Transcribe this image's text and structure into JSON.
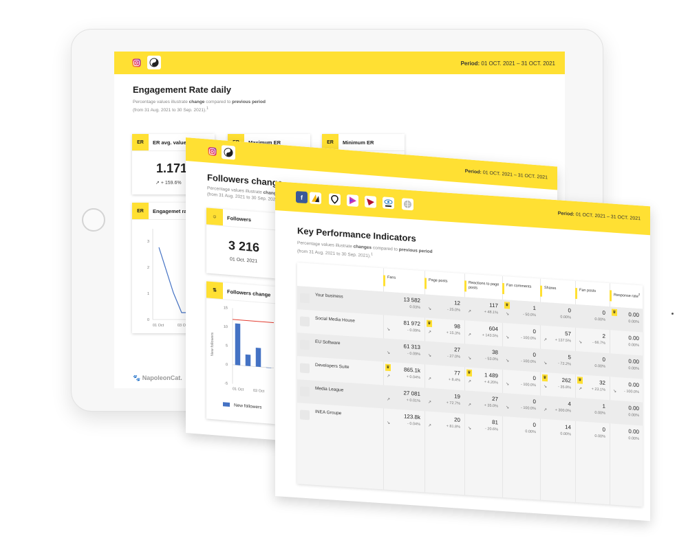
{
  "brand": {
    "name": "NapoleonCat."
  },
  "colors": {
    "accent": "#ffe033",
    "bar": "#4472c4",
    "line": "#e33b2e"
  },
  "engagement_sheet": {
    "period_label": "Period:",
    "period_value": "01 OCT. 2021 – 31 OCT. 2021",
    "title": "Engagement Rate daily",
    "subtitle_pre": "Percentage values illustrate ",
    "subtitle_b1": "change",
    "subtitle_mid": " compared to ",
    "subtitle_b2": "previous period",
    "subtitle_line2": "(from 31 Aug. 2021 to 30 Sep. 2021).",
    "subtitle_note": "1",
    "cards": [
      {
        "label": "ER avg. value",
        "badge": "ER",
        "value": "1.171",
        "change": "+ 159.6%"
      },
      {
        "label": "Maximum ER",
        "badge": "ER"
      },
      {
        "label": "Minimum ER",
        "badge": "ER"
      }
    ],
    "chart_card_label": "Engagemet rate",
    "chart_card_badge": "ER",
    "chart_y_ticks": [
      "3",
      "2",
      "1",
      "0"
    ],
    "chart_x_ticks": [
      "01 Oct",
      "03 Oct"
    ]
  },
  "followers_sheet": {
    "period_label": "Period:",
    "period_value": "01 OCT. 2021 – 31 OCT. 2021",
    "title": "Followers change",
    "subtitle_pre": "Percentage values illustrate ",
    "subtitle_b1": "chang",
    "subtitle_line2": "(from 31 Aug. 2021 to 30 Sep. 2021).",
    "followers_card": {
      "label": "Followers",
      "value": "3 216",
      "date": "01 Oct. 2021"
    },
    "change_card": {
      "label": "Followers change"
    }
  },
  "chart_data": {
    "type": "bar",
    "title": "",
    "xlabel": "",
    "ylabel": "New followers",
    "ylim": [
      -5,
      15
    ],
    "y_ticks": [
      "15",
      "10",
      "5",
      "0",
      "-5"
    ],
    "x_tick_labels": [
      "01 Oct",
      "03 Oct"
    ],
    "categories": [
      "01 Oct",
      "02 Oct",
      "03 Oct",
      "04 Oct"
    ],
    "series": [
      {
        "name": "New followers",
        "values": [
          11,
          3,
          5,
          0
        ]
      }
    ],
    "reference_line": 12,
    "legend": "bottom"
  },
  "kpi_sheet": {
    "period_label": "Period:",
    "period_value": "01 OCT. 2021 – 31 OCT. 2021",
    "title": "Key Performance Indicators",
    "subtitle_pre": "Percentage values illustrate ",
    "subtitle_b1": "changes",
    "subtitle_mid": " compared to ",
    "subtitle_b2": "previous period",
    "subtitle_line2": "(from 31 Aug. 2021 to 30 Sep. 2021).",
    "subtitle_note": "1",
    "columns": [
      "Fans",
      "Page posts",
      "Reactions to page posts",
      "Fan comments",
      "Shares",
      "Fan posts",
      "Response rate"
    ],
    "response_note": "2",
    "rows": [
      {
        "name": "Your business",
        "icon": "yourbiz-logo",
        "cells": [
          {
            "v": "13 582",
            "p": "0.03%",
            "t": ""
          },
          {
            "v": "12",
            "p": "- 25.0%",
            "t": "↘"
          },
          {
            "v": "117",
            "p": "+ 48.1%",
            "t": "↗"
          },
          {
            "v": "1",
            "p": "- 50.0%",
            "t": "↘",
            "b": true
          },
          {
            "v": "0",
            "p": "0.00%",
            "t": ""
          },
          {
            "v": "0",
            "p": "0.00%",
            "t": ""
          },
          {
            "v": "0.00",
            "p": "0.00%",
            "t": "",
            "b": true
          }
        ]
      },
      {
        "name": "Social Media House",
        "icon": "pin-logo",
        "cells": [
          {
            "v": "81 972",
            "p": "- 0.09%",
            "t": "↘"
          },
          {
            "v": "98",
            "p": "+ 15.3%",
            "t": "↗",
            "b": true
          },
          {
            "v": "604",
            "p": "+ 143.5%",
            "t": "↗"
          },
          {
            "v": "0",
            "p": "- 100.0%",
            "t": "↘"
          },
          {
            "v": "57",
            "p": "+ 137.5%",
            "t": "↗"
          },
          {
            "v": "2",
            "p": "- 66.7%",
            "t": "↘"
          },
          {
            "v": "0.00",
            "p": "0.00%",
            "t": ""
          }
        ]
      },
      {
        "name": "EU Software",
        "icon": "eusoft-logo",
        "cells": [
          {
            "v": "61 313",
            "p": "- 0.09%",
            "t": "↘"
          },
          {
            "v": "27",
            "p": "- 27.0%",
            "t": "↘"
          },
          {
            "v": "38",
            "p": "- 53.0%",
            "t": "↘"
          },
          {
            "v": "0",
            "p": "- 100.0%",
            "t": "↘"
          },
          {
            "v": "5",
            "p": "- 72.2%",
            "t": "↘"
          },
          {
            "v": "0",
            "p": "0.00%",
            "t": ""
          },
          {
            "v": "0.00",
            "p": "0.00%",
            "t": ""
          }
        ]
      },
      {
        "name": "Developers Suite",
        "icon": "devsuite-logo",
        "cells": [
          {
            "v": "865.1k",
            "p": "+ 0.04%",
            "t": "↗",
            "b": true
          },
          {
            "v": "77",
            "p": "+ 8.4%",
            "t": "↗"
          },
          {
            "v": "1 489",
            "p": "+ 4.20%",
            "t": "↗",
            "b": true
          },
          {
            "v": "0",
            "p": "- 100.0%",
            "t": "↘"
          },
          {
            "v": "262",
            "p": "- 35.8%",
            "t": "↘",
            "b": true
          },
          {
            "v": "32",
            "p": "+ 23.1%",
            "t": "↗",
            "b": true
          },
          {
            "v": "0.00",
            "p": "- 100.0%",
            "t": "↘"
          }
        ]
      },
      {
        "name": "Media League",
        "icon": "media-logo",
        "cells": [
          {
            "v": "27 081",
            "p": "+ 0.01%",
            "t": "↗"
          },
          {
            "v": "19",
            "p": "+ 72.7%",
            "t": "↗"
          },
          {
            "v": "27",
            "p": "+ 35.0%",
            "t": "↗"
          },
          {
            "v": "0",
            "p": "- 100.0%",
            "t": "↘"
          },
          {
            "v": "4",
            "p": "+ 300.0%",
            "t": "↗"
          },
          {
            "v": "1",
            "p": "0.00%",
            "t": ""
          },
          {
            "v": "0.00",
            "p": "0.00%",
            "t": ""
          }
        ]
      },
      {
        "name": "INEA Groupe",
        "icon": "inea-logo",
        "cells": [
          {
            "v": "123.8k",
            "p": "- 0.04%",
            "t": "↘"
          },
          {
            "v": "20",
            "p": "+ 81.8%",
            "t": "↗"
          },
          {
            "v": "81",
            "p": "- 20.6%",
            "t": "↘"
          },
          {
            "v": "0",
            "p": "0.00%",
            "t": ""
          },
          {
            "v": "14",
            "p": "0.00%",
            "t": ""
          },
          {
            "v": "0",
            "p": "0.00%",
            "t": ""
          },
          {
            "v": "0.00",
            "p": "0.00%",
            "t": ""
          }
        ]
      }
    ]
  }
}
